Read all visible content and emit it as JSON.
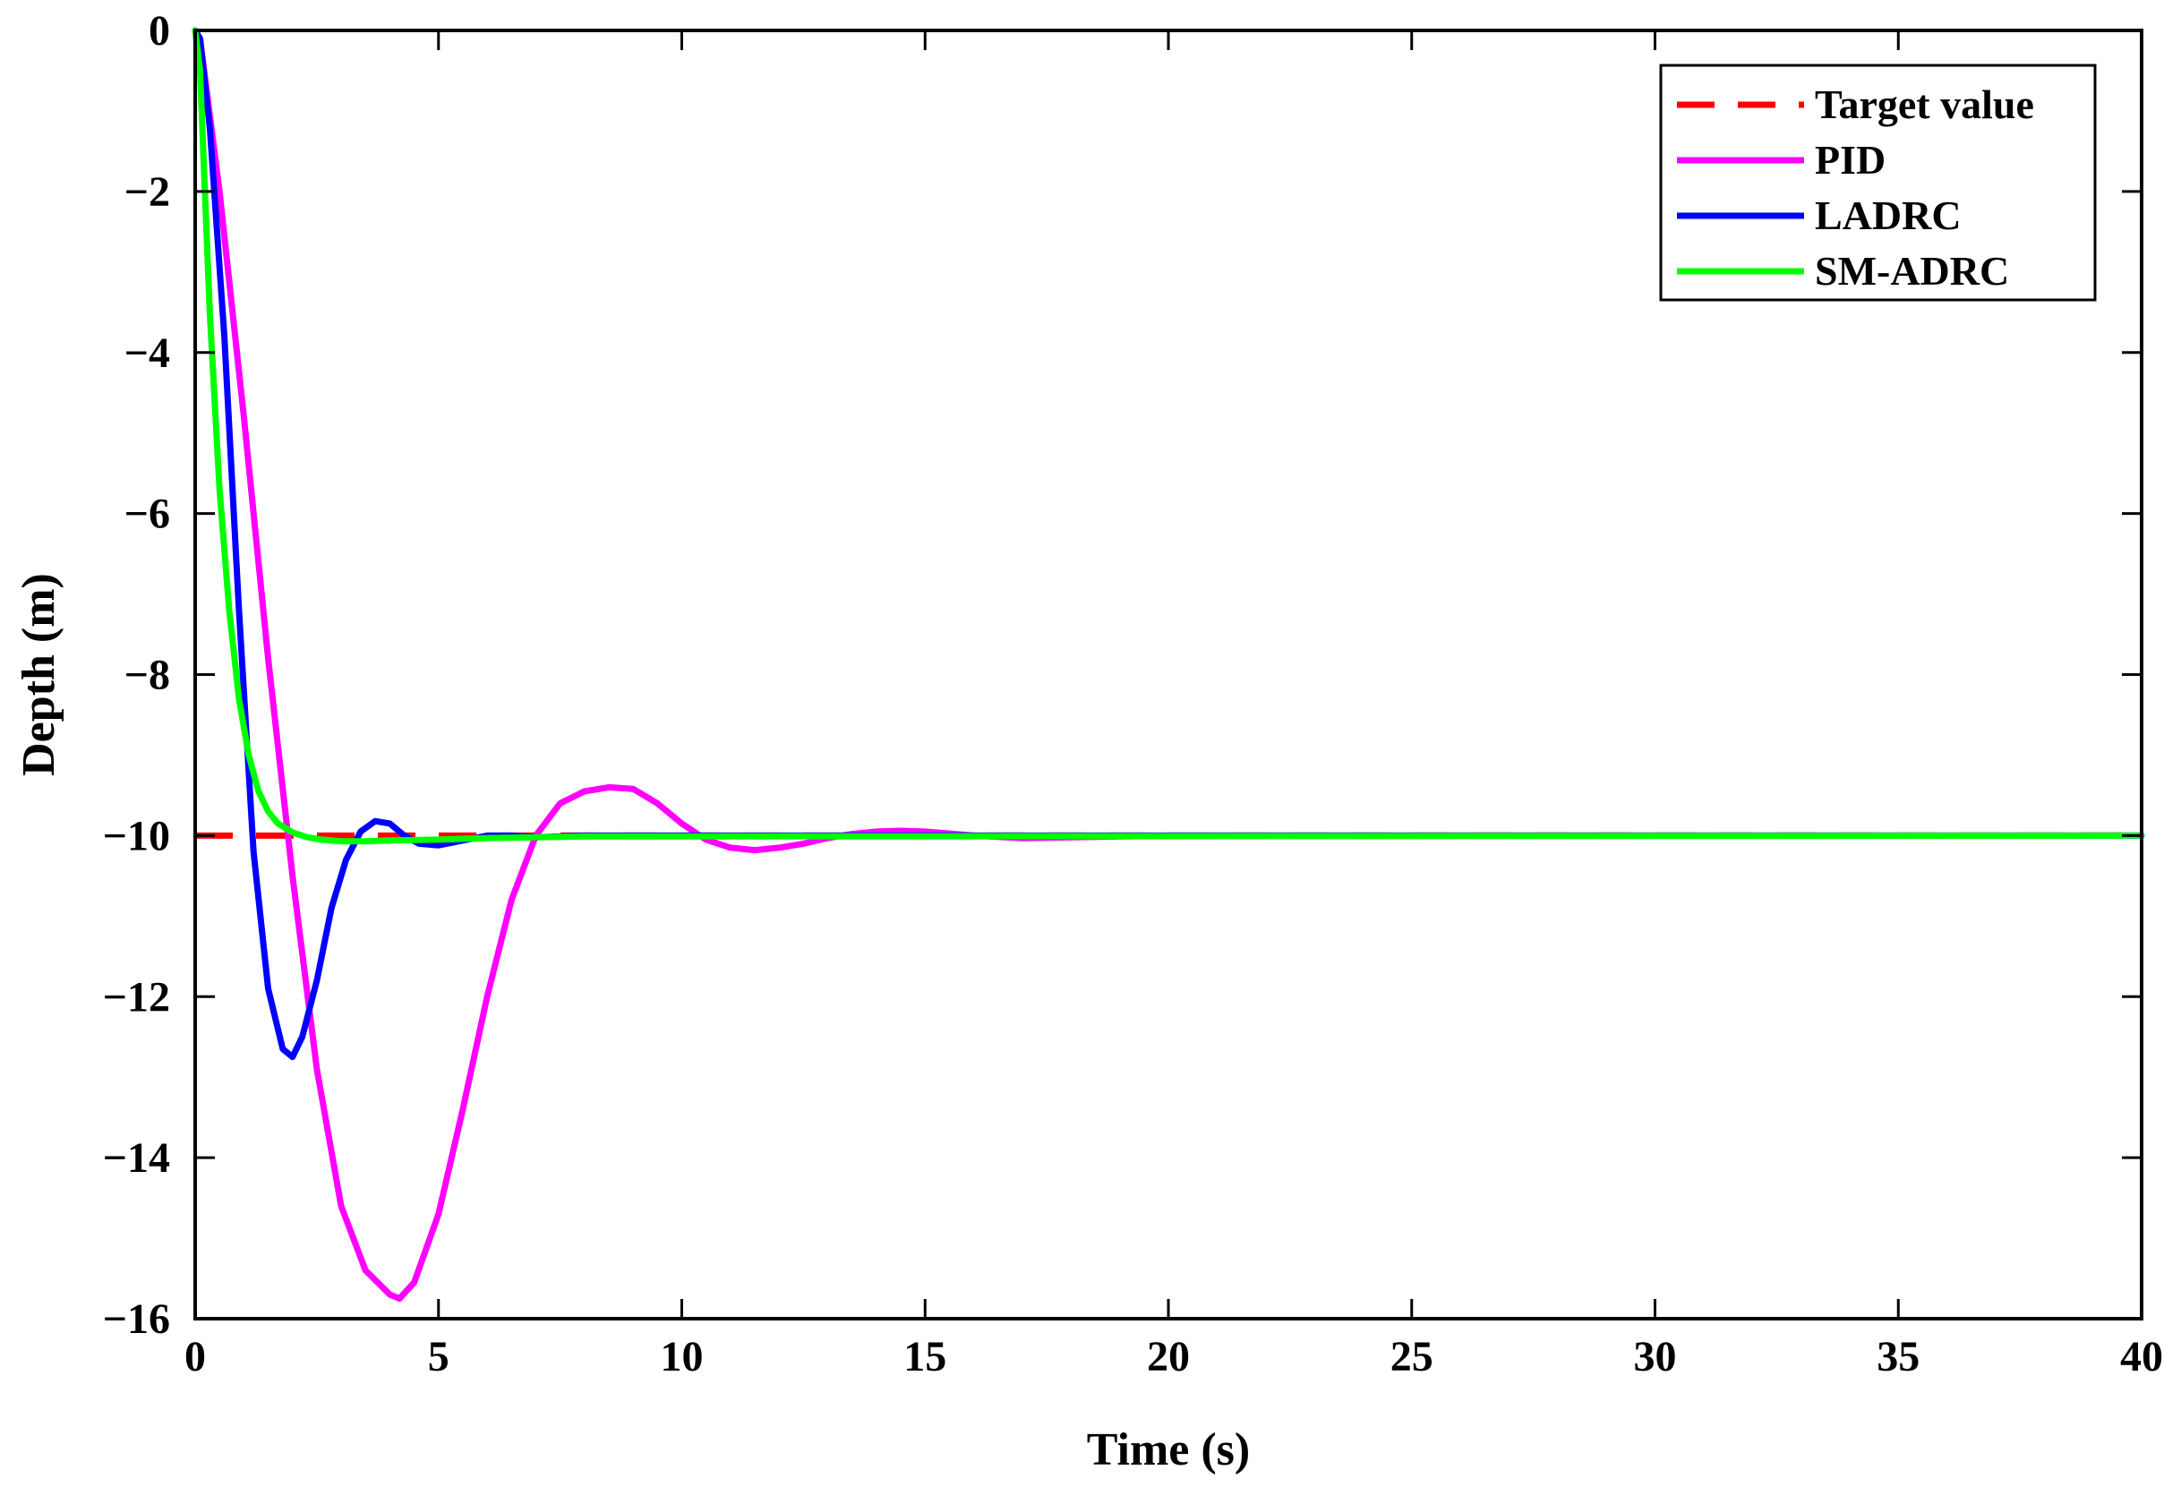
{
  "chart_data": {
    "type": "line",
    "title": "",
    "xlabel": "Time (s)",
    "ylabel": "Depth (m)",
    "xlim": [
      0,
      40
    ],
    "ylim": [
      -16,
      0
    ],
    "xticks": [
      0,
      5,
      10,
      15,
      20,
      25,
      30,
      35,
      40
    ],
    "yticks": [
      0,
      -2,
      -4,
      -6,
      -8,
      -10,
      -12,
      -14,
      -16
    ],
    "xtick_labels": [
      "0",
      "5",
      "10",
      "15",
      "20",
      "25",
      "30",
      "35",
      "40"
    ],
    "ytick_labels": [
      "0",
      "−2",
      "−4",
      "−6",
      "−8",
      "−10",
      "−12",
      "−14",
      "−16"
    ],
    "grid": false,
    "legend_position": "top-right",
    "series": [
      {
        "name": "Target value",
        "color": "#ff0000",
        "style": "dashed",
        "x": [
          0,
          40
        ],
        "y": [
          -10,
          -10
        ]
      },
      {
        "name": "PID",
        "color": "#ff00ff",
        "style": "solid",
        "x": [
          0,
          0.1,
          0.5,
          1.0,
          1.5,
          2.0,
          2.5,
          3.0,
          3.5,
          4.0,
          4.2,
          4.5,
          5.0,
          5.5,
          6.0,
          6.5,
          7.0,
          7.5,
          8.0,
          8.5,
          9.0,
          9.5,
          10.0,
          10.5,
          11.0,
          11.5,
          12.0,
          12.5,
          13.0,
          13.5,
          14.0,
          14.5,
          15.0,
          16.0,
          17.0,
          18.0,
          20.0,
          25.0,
          30.0,
          40.0
        ],
        "y": [
          0,
          -0.1,
          -2.0,
          -4.8,
          -7.8,
          -10.5,
          -12.9,
          -14.6,
          -15.4,
          -15.7,
          -15.75,
          -15.55,
          -14.7,
          -13.4,
          -12.0,
          -10.8,
          -10.0,
          -9.6,
          -9.45,
          -9.4,
          -9.42,
          -9.6,
          -9.85,
          -10.05,
          -10.15,
          -10.18,
          -10.15,
          -10.1,
          -10.03,
          -9.98,
          -9.95,
          -9.94,
          -9.95,
          -10.0,
          -10.03,
          -10.02,
          -10.0,
          -10.0,
          -10.0,
          -10.0
        ]
      },
      {
        "name": "LADRC",
        "color": "#0000ff",
        "style": "solid",
        "x": [
          0,
          0.1,
          0.3,
          0.6,
          0.9,
          1.2,
          1.5,
          1.8,
          2.0,
          2.2,
          2.5,
          2.8,
          3.1,
          3.4,
          3.7,
          4.0,
          4.3,
          4.6,
          5.0,
          5.5,
          6.0,
          6.5,
          7.0,
          8.0,
          10.0,
          40.0
        ],
        "y": [
          0,
          -0.1,
          -1.2,
          -3.8,
          -7.2,
          -10.2,
          -11.9,
          -12.65,
          -12.75,
          -12.5,
          -11.8,
          -10.9,
          -10.3,
          -9.95,
          -9.82,
          -9.85,
          -10.0,
          -10.1,
          -10.12,
          -10.06,
          -10.0,
          -10.0,
          -10.02,
          -10.0,
          -10.0,
          -10.0
        ]
      },
      {
        "name": "SM-ADRC",
        "color": "#00ff00",
        "style": "solid",
        "x": [
          0,
          0.1,
          0.3,
          0.5,
          0.7,
          0.9,
          1.1,
          1.3,
          1.5,
          1.7,
          2.0,
          2.3,
          2.6,
          3.0,
          3.5,
          4.0,
          5.0,
          6.0,
          8.0,
          40.0
        ],
        "y": [
          0,
          -0.5,
          -3.5,
          -5.7,
          -7.2,
          -8.3,
          -9.0,
          -9.45,
          -9.7,
          -9.85,
          -9.96,
          -10.02,
          -10.05,
          -10.07,
          -10.07,
          -10.06,
          -10.05,
          -10.03,
          -10.01,
          -10.0
        ]
      }
    ]
  }
}
